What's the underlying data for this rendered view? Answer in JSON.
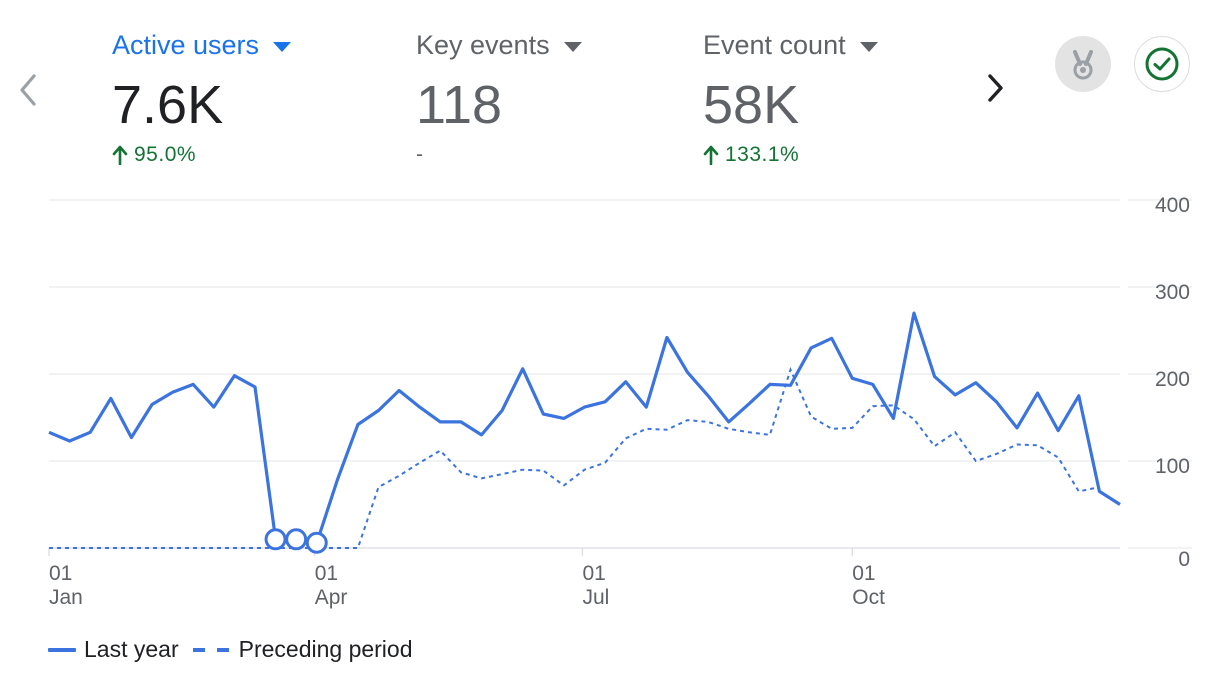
{
  "header": {
    "metrics": [
      {
        "label": "Active users",
        "value": "7.6K",
        "change": "95.0%",
        "trend": "up",
        "active": true
      },
      {
        "label": "Key events",
        "value": "118",
        "change": "-",
        "trend": "none",
        "active": false
      },
      {
        "label": "Event count",
        "value": "58K",
        "change": "133.1%",
        "trend": "up",
        "active": false
      }
    ],
    "icons": {
      "prev": "chevron-left-icon",
      "next": "chevron-right-icon",
      "badge1": "medal-icon",
      "badge2": "check-circle-icon"
    }
  },
  "colors": {
    "accent": "#1a73e8",
    "series": "#3b74df",
    "positive": "#137333"
  },
  "chart_data": {
    "type": "line",
    "y_ticks": [
      "0",
      "100",
      "200",
      "300",
      "400"
    ],
    "ylim": [
      0,
      400
    ],
    "x_ticks": [
      {
        "day": "01",
        "month": "Jan",
        "week": 0
      },
      {
        "day": "01",
        "month": "Apr",
        "week": 12.9
      },
      {
        "day": "01",
        "month": "Jul",
        "week": 25.9
      },
      {
        "day": "01",
        "month": "Oct",
        "week": 39
      }
    ],
    "grid": true,
    "legend_position": "bottom-left",
    "series": [
      {
        "name": "Last year",
        "style": "solid",
        "values": [
          133,
          123,
          133,
          172,
          127,
          165,
          179,
          188,
          162,
          198,
          185,
          10,
          10,
          6,
          78,
          142,
          158,
          181,
          162,
          145,
          145,
          130,
          158,
          206,
          154,
          149,
          162,
          168,
          191,
          162,
          242,
          202,
          175,
          145,
          166,
          188,
          187,
          230,
          241,
          195,
          188,
          149,
          270,
          197,
          176,
          190,
          168,
          138,
          178,
          135,
          175,
          65,
          50
        ],
        "markers": [
          11,
          12,
          13
        ]
      },
      {
        "name": "Preceding period",
        "style": "dashed",
        "values": [
          0,
          0,
          0,
          0,
          0,
          0,
          0,
          0,
          0,
          0,
          0,
          0,
          0,
          0,
          0,
          0,
          70,
          83,
          98,
          112,
          87,
          80,
          85,
          90,
          89,
          72,
          90,
          98,
          126,
          137,
          136,
          147,
          145,
          137,
          133,
          130,
          205,
          151,
          137,
          138,
          163,
          164,
          148,
          117,
          133,
          100,
          108,
          119,
          118,
          104,
          65,
          70
        ]
      }
    ]
  },
  "legend": {
    "items": [
      "Last year",
      "Preceding period"
    ]
  }
}
